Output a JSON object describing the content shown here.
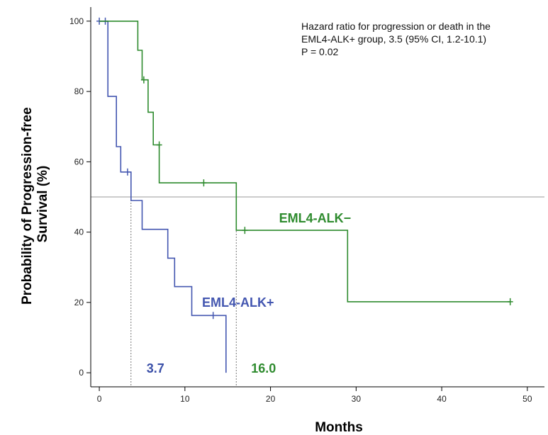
{
  "chart_data": {
    "type": "line",
    "step": true,
    "xlabel": "Months",
    "ylabel_lines": [
      "Probability of Progression-free",
      "Survival (%)"
    ],
    "xlim": [
      -1,
      52
    ],
    "ylim": [
      -4,
      104
    ],
    "xticks": [
      0,
      10,
      20,
      30,
      40,
      50
    ],
    "yticks": [
      0,
      20,
      40,
      60,
      80,
      100
    ],
    "xtick_labels": [
      "0",
      "10",
      "20",
      "30",
      "40",
      "50"
    ],
    "ytick_labels": [
      "0",
      "20",
      "40",
      "60",
      "80",
      "100"
    ],
    "reference_line_y": 50,
    "annotation_lines": [
      "Hazard ratio for progression or death in the",
      "EML4-ALK+ group, 3.5 (95% CI, 1.2-10.1)",
      "P = 0.02"
    ],
    "medians": [
      {
        "x": 3.7,
        "label": "3.7",
        "color": "#3a4fa8"
      },
      {
        "x": 16.0,
        "label": "16.0",
        "color": "#2e8b2e"
      }
    ],
    "series": [
      {
        "name": "EML4-ALK+",
        "color": "#4356b0",
        "steps": [
          [
            0,
            100
          ],
          [
            1,
            100
          ],
          [
            1,
            93
          ],
          [
            1,
            78.6
          ],
          [
            2,
            78.6
          ],
          [
            2,
            64.3
          ],
          [
            2.5,
            64.3
          ],
          [
            2.5,
            57.1
          ],
          [
            3.7,
            57.1
          ],
          [
            3.7,
            49
          ],
          [
            5,
            49
          ],
          [
            5,
            40.8
          ],
          [
            8,
            40.8
          ],
          [
            8,
            32.6
          ],
          [
            8.8,
            32.6
          ],
          [
            8.8,
            24.5
          ],
          [
            10.8,
            24.5
          ],
          [
            10.8,
            16.3
          ],
          [
            14.8,
            16.3
          ],
          [
            14.8,
            0
          ]
        ],
        "censors": [
          [
            0,
            100
          ],
          [
            0.7,
            100
          ],
          [
            3.3,
            57.1
          ],
          [
            13.3,
            16.3
          ]
        ],
        "label_pos": [
          12,
          20
        ]
      },
      {
        "name": "EML4-ALK−",
        "color": "#2e8b2e",
        "steps": [
          [
            0,
            100
          ],
          [
            4.5,
            100
          ],
          [
            4.5,
            91.7
          ],
          [
            5,
            91.7
          ],
          [
            5,
            83.3
          ],
          [
            5.7,
            83.3
          ],
          [
            5.7,
            74.1
          ],
          [
            6.3,
            74.1
          ],
          [
            6.3,
            64.8
          ],
          [
            7,
            64.8
          ],
          [
            7,
            54
          ],
          [
            16,
            54
          ],
          [
            16,
            40.5
          ],
          [
            29,
            40.5
          ],
          [
            29,
            20.2
          ],
          [
            48,
            20.2
          ]
        ],
        "censors": [
          [
            5.2,
            83.3
          ],
          [
            7,
            64.8
          ],
          [
            12.2,
            54
          ],
          [
            17,
            40.5
          ],
          [
            48,
            20.2
          ]
        ],
        "label_pos": [
          21,
          44
        ]
      }
    ]
  }
}
